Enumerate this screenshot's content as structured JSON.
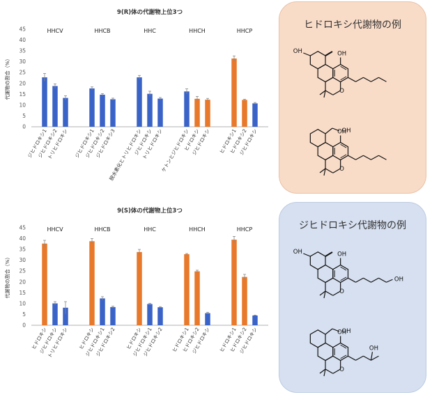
{
  "chart_data": [
    {
      "type": "bar",
      "title": "9(R)体の代謝物上位3つ",
      "ylabel": "代謝物の割合（%）",
      "ylim": [
        0,
        45
      ],
      "yticks": [
        0,
        5,
        10,
        15,
        20,
        25,
        30,
        35,
        40,
        45
      ],
      "colors": {
        "blue": "#3a63c8",
        "orange": "#e8782a"
      },
      "groups": [
        {
          "name": "HHCV",
          "bars": [
            {
              "label": "ジヒドロキシ1",
              "value": 22.8,
              "err": 1.8,
              "color": "blue"
            },
            {
              "label": "ジヒドロキシ2",
              "value": 18.8,
              "err": 1.0,
              "color": "blue"
            },
            {
              "label": "トリヒドロキシ",
              "value": 13.3,
              "err": 1.0,
              "color": "blue"
            }
          ]
        },
        {
          "name": "HHCB",
          "bars": [
            {
              "label": "ジヒドロキシ1",
              "value": 17.7,
              "err": 0.7,
              "color": "blue"
            },
            {
              "label": "ジヒドロキシ2",
              "value": 14.8,
              "err": 0.5,
              "color": "blue"
            },
            {
              "label": "ジヒドロキシ3",
              "value": 12.7,
              "err": 0.5,
              "color": "blue"
            }
          ]
        },
        {
          "name": "HHC",
          "bars": [
            {
              "label": "脱水素化とトリヒドロキシ",
              "value": 22.8,
              "err": 0.9,
              "color": "blue"
            },
            {
              "label": "ジヒドロキシ",
              "value": 15.2,
              "err": 1.2,
              "color": "blue"
            },
            {
              "label": "トリヒドロキシ",
              "value": 13.0,
              "err": 0.5,
              "color": "blue"
            }
          ]
        },
        {
          "name": "HHCH",
          "bars": [
            {
              "label": "ケトンとジヒドロキシ",
              "value": 16.3,
              "err": 1.2,
              "color": "blue"
            },
            {
              "label": "ヒドロキシ",
              "value": 12.9,
              "err": 1.1,
              "color": "orange"
            },
            {
              "label": "ジヒドロキシ",
              "value": 12.5,
              "err": 0.6,
              "color": "orange"
            }
          ]
        },
        {
          "name": "HHCP",
          "bars": [
            {
              "label": "ヒドロキシ1",
              "value": 31.5,
              "err": 1.2,
              "color": "orange"
            },
            {
              "label": "ヒドロキシ2",
              "value": 12.4,
              "err": 0.3,
              "color": "orange"
            },
            {
              "label": "ジヒドロキシ",
              "value": 10.8,
              "err": 0.4,
              "color": "blue"
            }
          ]
        }
      ]
    },
    {
      "type": "bar",
      "title": "9(S)体の代謝物上位3つ",
      "ylabel": "代謝物の割合（%）",
      "ylim": [
        0,
        45
      ],
      "yticks": [
        0,
        5,
        10,
        15,
        20,
        25,
        30,
        35,
        40,
        45
      ],
      "colors": {
        "blue": "#3a63c8",
        "orange": "#e8782a"
      },
      "groups": [
        {
          "name": "HHCV",
          "bars": [
            {
              "label": "ヒドロキシ",
              "value": 37.7,
              "err": 1.5,
              "color": "orange"
            },
            {
              "label": "ジヒドロキシ",
              "value": 10.1,
              "err": 0.8,
              "color": "blue"
            },
            {
              "label": "トリヒドロキシ",
              "value": 8.1,
              "err": 2.8,
              "color": "blue"
            }
          ]
        },
        {
          "name": "HHCB",
          "bars": [
            {
              "label": "ヒドロキシ",
              "value": 38.8,
              "err": 1.2,
              "color": "orange"
            },
            {
              "label": "ジヒドロキシ1",
              "value": 12.4,
              "err": 0.8,
              "color": "blue"
            },
            {
              "label": "ジヒドロキシ2",
              "value": 8.4,
              "err": 0.4,
              "color": "blue"
            }
          ]
        },
        {
          "name": "HHC",
          "bars": [
            {
              "label": "ヒドロキシ",
              "value": 33.8,
              "err": 1.2,
              "color": "orange"
            },
            {
              "label": "ジヒドロキシ1",
              "value": 9.8,
              "err": 0.3,
              "color": "blue"
            },
            {
              "label": "ジヒドロキシ2",
              "value": 8.3,
              "err": 0.3,
              "color": "blue"
            }
          ]
        },
        {
          "name": "HHCH",
          "bars": [
            {
              "label": "ヒドロキシ1",
              "value": 32.8,
              "err": 0.3,
              "color": "orange"
            },
            {
              "label": "ヒドロキシ2",
              "value": 24.9,
              "err": 0.5,
              "color": "orange"
            },
            {
              "label": "ジヒドロキシ",
              "value": 5.6,
              "err": 0.4,
              "color": "blue"
            }
          ]
        },
        {
          "name": "HHCP",
          "bars": [
            {
              "label": "ヒドロキシ1",
              "value": 39.5,
              "err": 1.5,
              "color": "orange"
            },
            {
              "label": "ヒドロキシ2",
              "value": 22.3,
              "err": 1.2,
              "color": "orange"
            },
            {
              "label": "ジヒドロキシ",
              "value": 4.5,
              "err": 0.2,
              "color": "blue"
            }
          ]
        }
      ]
    }
  ],
  "cards": [
    {
      "title": "ヒドロキシ代謝物の例",
      "bg": "#f9dcc8",
      "border": "#e8c1a6",
      "molecules": [
        {
          "name": "hydroxy-hhcp-ring-oh",
          "tail_oh": false,
          "tail_branch": false,
          "hydroxymethyl": false
        },
        {
          "name": "hydroxy-hhcp-hydroxymethyl",
          "tail_oh": false,
          "tail_branch": false,
          "hydroxymethyl": true
        }
      ],
      "labels": {
        "oh": "OH",
        "o": "O"
      }
    },
    {
      "title": "ジヒドロキシ代謝物の例",
      "bg": "#d6e0f0",
      "border": "#bccbe2",
      "molecules": [
        {
          "name": "dihydroxy-ring-tail",
          "tail_oh": true,
          "tail_branch": false,
          "hydroxymethyl": false
        },
        {
          "name": "dihydroxy-hydroxymethyl-branch",
          "tail_oh": false,
          "tail_branch": true,
          "hydroxymethyl": true
        }
      ],
      "labels": {
        "oh": "OH",
        "o": "O"
      }
    }
  ]
}
